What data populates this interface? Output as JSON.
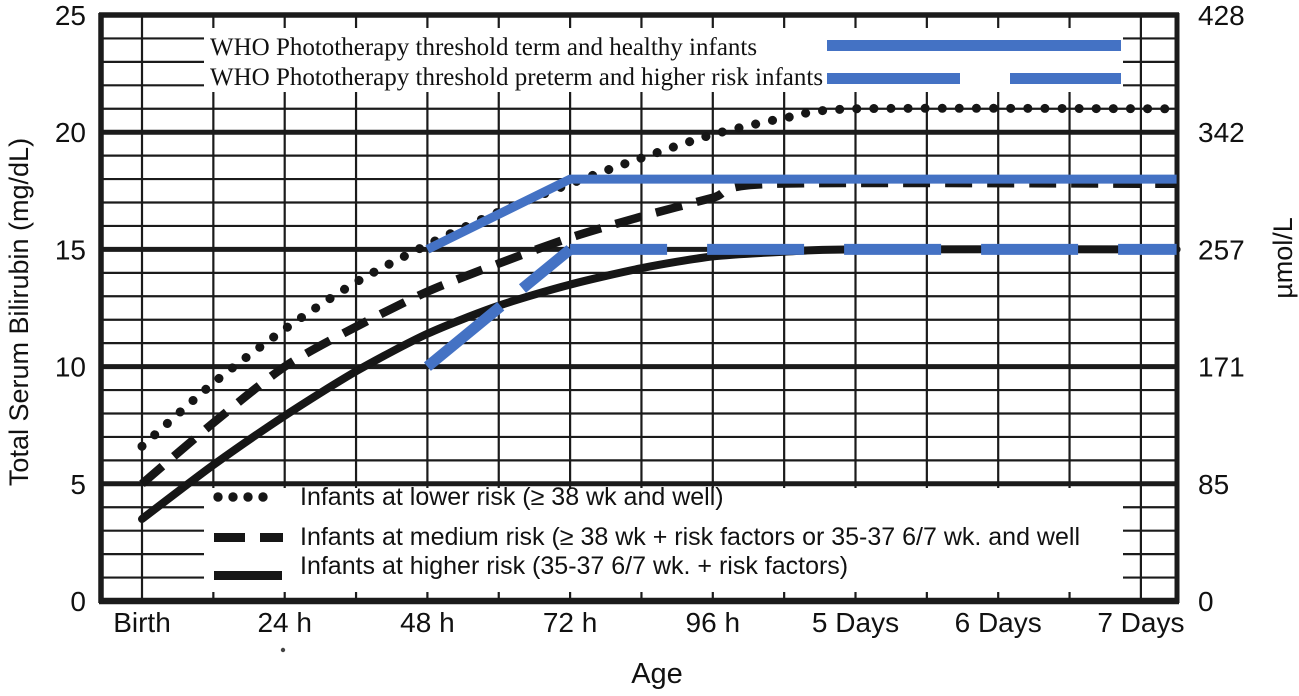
{
  "figure": {
    "y_left_axis_title": "Total Serum Bilirubin (mg/dL)",
    "y_right_axis_title": "µmol/L",
    "x_axis_title": "Age"
  },
  "legend_top": {
    "items": [
      {
        "label": "WHO Phototherapy threshold term and healthy infants",
        "series": "who_term"
      },
      {
        "label": "WHO Phototherapy threshold preterm and higher risk infants",
        "series": "who_preterm"
      }
    ]
  },
  "legend_bottom": {
    "items": [
      {
        "label": "Infants at lower risk (≥ 38 wk and well)",
        "series": "lower_risk"
      },
      {
        "label": "Infants at medium risk (≥ 38 wk + risk factors or 35-37 6/7 wk. and well",
        "series": "medium_risk"
      },
      {
        "label": "Infants at higher risk (35-37 6/7 wk. + risk factors)",
        "series": "higher_risk"
      }
    ]
  },
  "chart_data": {
    "type": "line",
    "title": "",
    "xlabel": "Age",
    "ylabel_left": "Total Serum Bilirubin (mg/dL)",
    "ylabel_right": "µmol/L",
    "x_unit": "hours",
    "xlim_hours": [
      -7,
      174
    ],
    "ylim": [
      0,
      25
    ],
    "grid": {
      "x_minor_step_hours": 12,
      "y_minor_step": 1,
      "y_major_step": 5,
      "grid_on": true
    },
    "x_ticks": [
      {
        "hours": 0,
        "label": "Birth"
      },
      {
        "hours": 24,
        "label": "24 h"
      },
      {
        "hours": 48,
        "label": "48 h"
      },
      {
        "hours": 72,
        "label": "72 h"
      },
      {
        "hours": 96,
        "label": "96 h"
      },
      {
        "hours": 120,
        "label": "5 Days"
      },
      {
        "hours": 144,
        "label": "6 Days"
      },
      {
        "hours": 168,
        "label": "7 Days"
      }
    ],
    "y_left_ticks": [
      0,
      5,
      10,
      15,
      20,
      25
    ],
    "y_right_ticks": [
      "0",
      "85",
      "171",
      "257",
      "342",
      "428"
    ],
    "series": [
      {
        "id": "lower_risk",
        "name": "Infants at lower risk (≥ 38 wk and well)",
        "line": "dotted-black",
        "points": [
          [
            0,
            6.6
          ],
          [
            12,
            9.3
          ],
          [
            24,
            11.6
          ],
          [
            36,
            13.6
          ],
          [
            48,
            15.2
          ],
          [
            60,
            16.6
          ],
          [
            72,
            17.8
          ],
          [
            84,
            18.9
          ],
          [
            96,
            19.9
          ],
          [
            108,
            20.6
          ],
          [
            120,
            21
          ],
          [
            174,
            21
          ]
        ]
      },
      {
        "id": "medium_risk",
        "name": "Infants at medium risk (≥ 38 wk + risk factors or 35-37 6/7 wk. and well",
        "line": "dashed-black",
        "points": [
          [
            0,
            5
          ],
          [
            12,
            7.6
          ],
          [
            24,
            10
          ],
          [
            36,
            11.7
          ],
          [
            48,
            13.2
          ],
          [
            60,
            14.4
          ],
          [
            72,
            15.5
          ],
          [
            84,
            16.4
          ],
          [
            96,
            17.2
          ],
          [
            106,
            17.8
          ],
          [
            174,
            17.8
          ]
        ]
      },
      {
        "id": "higher_risk",
        "name": "Infants at higher risk (35-37 6/7 wk. + risk factors)",
        "line": "solid-black",
        "points": [
          [
            0,
            3.5
          ],
          [
            12,
            5.8
          ],
          [
            24,
            7.9
          ],
          [
            36,
            9.8
          ],
          [
            48,
            11.4
          ],
          [
            60,
            12.6
          ],
          [
            72,
            13.5
          ],
          [
            84,
            14.2
          ],
          [
            96,
            14.7
          ],
          [
            108,
            14.9
          ],
          [
            120,
            15
          ],
          [
            174,
            15
          ]
        ]
      },
      {
        "id": "who_term",
        "name": "WHO Phototherapy threshold term and healthy infants",
        "line": "solid-blue",
        "points": [
          [
            48,
            15
          ],
          [
            72,
            18
          ],
          [
            174,
            18
          ]
        ]
      },
      {
        "id": "who_preterm_rise",
        "name": "WHO Phototherapy threshold preterm and higher risk infants",
        "line": "dashed-blue",
        "points": [
          [
            48,
            10
          ],
          [
            72,
            15
          ]
        ]
      },
      {
        "id": "who_preterm_flat",
        "name": "WHO Phototherapy threshold preterm and higher risk infants",
        "line": "dashed-blue-long",
        "points": [
          [
            72,
            15
          ],
          [
            174,
            15
          ]
        ]
      }
    ],
    "colors": {
      "who_blue": "#4472c4",
      "line_black": "#161616",
      "grid_black": "#1b1b1b",
      "background": "#ffffff"
    }
  }
}
